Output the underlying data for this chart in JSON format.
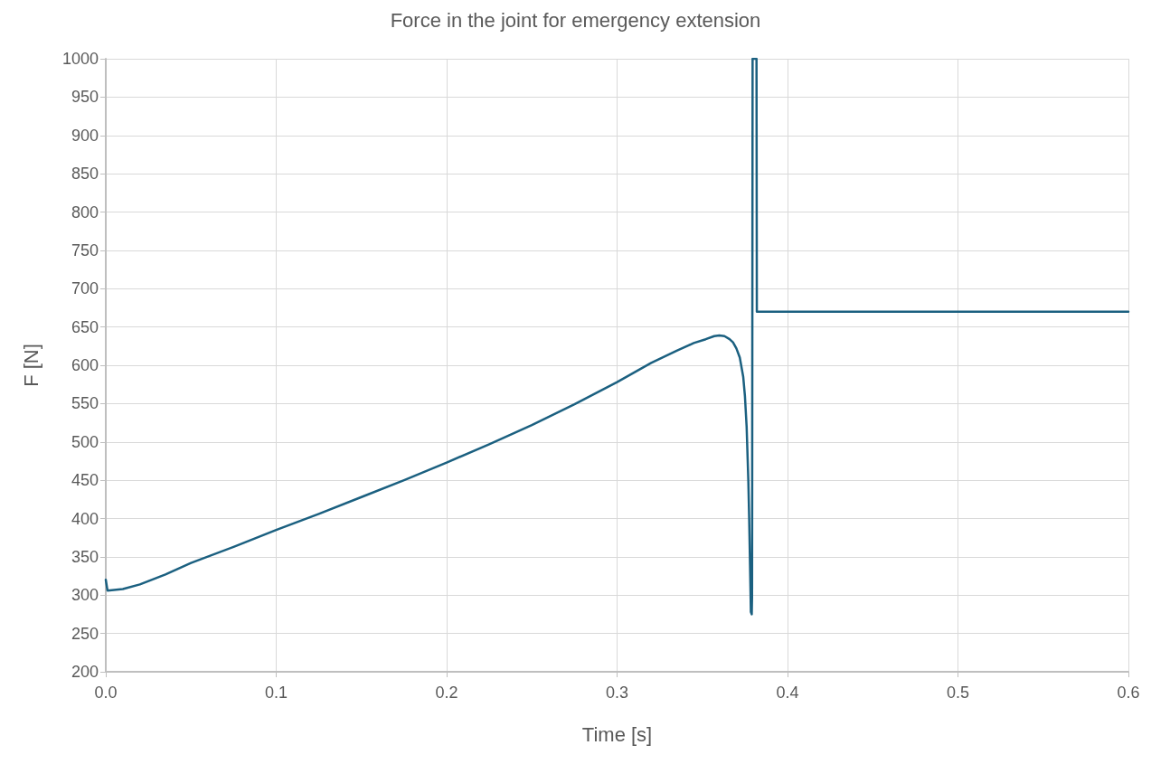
{
  "chart_data": {
    "type": "line",
    "title": "Force in the joint for emergency extension",
    "xlabel": "Time [s]",
    "ylabel": "F [N]",
    "x": [
      0,
      0.001,
      0.01,
      0.02,
      0.035,
      0.05,
      0.075,
      0.1,
      0.125,
      0.15,
      0.175,
      0.2,
      0.225,
      0.25,
      0.275,
      0.3,
      0.32,
      0.335,
      0.345,
      0.352,
      0.357,
      0.36,
      0.363,
      0.366,
      0.368,
      0.37,
      0.372,
      0.374,
      0.375,
      0.376,
      0.377,
      0.3775,
      0.378,
      0.3785,
      0.379,
      0.3792,
      0.3795,
      0.3818,
      0.382,
      0.6
    ],
    "series": [
      {
        "color": "#1b6080",
        "values": [
          320,
          306,
          308,
          314,
          327,
          342,
          363,
          385,
          406,
          428,
          450,
          473,
          497,
          522,
          549,
          578,
          603,
          619,
          629,
          634,
          638,
          639,
          638,
          634,
          630,
          622,
          610,
          585,
          560,
          520,
          450,
          400,
          340,
          278,
          275,
          300,
          1000,
          1000,
          670,
          670
        ]
      }
    ],
    "xlim": [
      0,
      0.6
    ],
    "xticks": [
      {
        "value": 0,
        "label": "0.0"
      },
      0.1,
      0.2,
      0.3,
      0.4,
      0.5,
      0.6
    ],
    "ylim": [
      200,
      1000
    ],
    "yticks": [
      200,
      250,
      300,
      350,
      400,
      450,
      500,
      550,
      600,
      650,
      700,
      750,
      800,
      850,
      900,
      950,
      1000
    ],
    "grid": true,
    "marker": "none",
    "line_style": "solid"
  }
}
